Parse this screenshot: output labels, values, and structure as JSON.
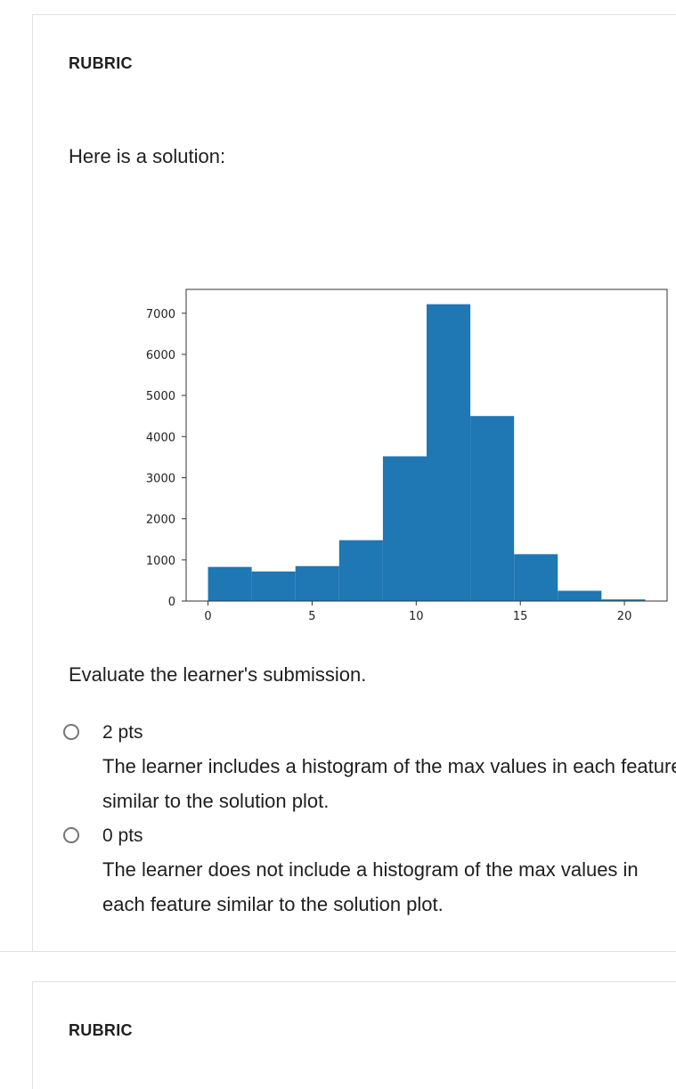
{
  "rubric_label": "RUBRIC",
  "prompt": "Here is a solution:",
  "evaluate_text": "Evaluate the learner's submission.",
  "options": [
    {
      "pts": "2 pts",
      "description": "The learner includes a histogram of the max values in each feature similar to the solution plot."
    },
    {
      "pts": "0 pts",
      "description_line1": "The learner does not include a histogram of the max values in",
      "description_line2": "each feature similar to the solution plot."
    }
  ],
  "rubric_label_2": "RUBRIC",
  "chart_data": {
    "type": "bar",
    "bar_color": "#1f77b4",
    "bins": [
      {
        "start": 0,
        "end": 2.1,
        "value": 830
      },
      {
        "start": 2.1,
        "end": 4.2,
        "value": 720
      },
      {
        "start": 4.2,
        "end": 6.3,
        "value": 850
      },
      {
        "start": 6.3,
        "end": 8.4,
        "value": 1480
      },
      {
        "start": 8.4,
        "end": 10.5,
        "value": 3520
      },
      {
        "start": 10.5,
        "end": 12.6,
        "value": 7220
      },
      {
        "start": 12.6,
        "end": 14.7,
        "value": 4500
      },
      {
        "start": 14.7,
        "end": 16.8,
        "value": 1140
      },
      {
        "start": 16.8,
        "end": 18.9,
        "value": 250
      },
      {
        "start": 18.9,
        "end": 21.0,
        "value": 40
      }
    ],
    "x_ticks": [
      "0",
      "5",
      "10",
      "15",
      "20"
    ],
    "x_tick_values": [
      0,
      5,
      10,
      15,
      20
    ],
    "y_ticks": [
      "0",
      "1000",
      "2000",
      "3000",
      "4000",
      "5000",
      "6000",
      "7000"
    ],
    "y_tick_values": [
      0,
      1000,
      2000,
      3000,
      4000,
      5000,
      6000,
      7000
    ],
    "xlim": [
      -1.05,
      22.05
    ],
    "ylim": [
      0,
      7580
    ],
    "title": "",
    "xlabel": "",
    "ylabel": "",
    "grid": false
  }
}
